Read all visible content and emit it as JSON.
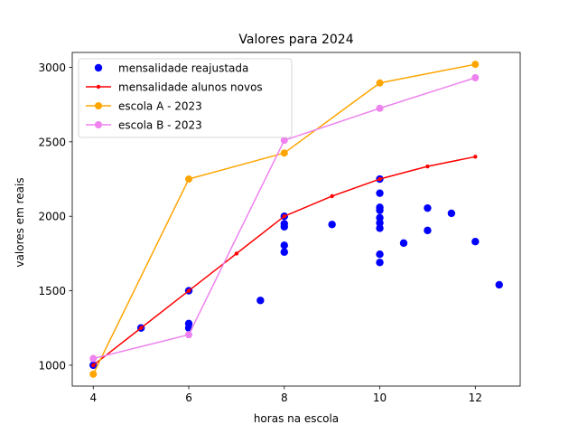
{
  "chart_data": {
    "type": "scatter",
    "title": "Valores para 2024",
    "xlabel": "horas na escola",
    "ylabel": "valores em reais",
    "xlim": [
      3.56,
      12.94
    ],
    "ylim": [
      860,
      3100
    ],
    "xticks": [
      4,
      6,
      8,
      10,
      12
    ],
    "yticks": [
      1000,
      1500,
      2000,
      2500,
      3000
    ],
    "grid": false,
    "legend_position": "top-left",
    "series": [
      {
        "name": "mensalidade reajustada",
        "kind": "scatter",
        "color": "#0000ff",
        "points": [
          [
            4,
            1000
          ],
          [
            5,
            1250
          ],
          [
            6,
            1500
          ],
          [
            6,
            1280
          ],
          [
            6,
            1250
          ],
          [
            7.5,
            1435
          ],
          [
            8,
            2000
          ],
          [
            8,
            1950
          ],
          [
            8,
            1930
          ],
          [
            8,
            1805
          ],
          [
            8,
            1760
          ],
          [
            9,
            1945
          ],
          [
            10,
            2250
          ],
          [
            10,
            2155
          ],
          [
            10,
            2060
          ],
          [
            10,
            2040
          ],
          [
            10,
            1990
          ],
          [
            10,
            1955
          ],
          [
            10,
            1920
          ],
          [
            10,
            1745
          ],
          [
            10,
            1690
          ],
          [
            10.5,
            1820
          ],
          [
            11,
            2055
          ],
          [
            11,
            1905
          ],
          [
            11.5,
            2020
          ],
          [
            12,
            1830
          ],
          [
            12.5,
            1540
          ]
        ]
      },
      {
        "name": "mensalidade alunos novos",
        "kind": "line",
        "color": "#ff0000",
        "marker_size": 2.2,
        "points": [
          [
            4,
            1000
          ],
          [
            5,
            1250
          ],
          [
            6,
            1500
          ],
          [
            7,
            1750
          ],
          [
            8,
            2000
          ],
          [
            9,
            2135
          ],
          [
            10,
            2250
          ],
          [
            11,
            2335
          ],
          [
            12,
            2400
          ]
        ]
      },
      {
        "name": "escola A - 2023",
        "kind": "line",
        "color": "#ffa500",
        "marker_size": 4,
        "points": [
          [
            4,
            940
          ],
          [
            6,
            2250
          ],
          [
            8,
            2425
          ],
          [
            10,
            2895
          ],
          [
            12,
            3020
          ]
        ]
      },
      {
        "name": "escola B - 2023",
        "kind": "line",
        "color": "#ee82ee",
        "marker_size": 4,
        "points": [
          [
            4,
            1045
          ],
          [
            6,
            1205
          ],
          [
            8,
            2510
          ],
          [
            10,
            2725
          ],
          [
            12,
            2930
          ]
        ]
      }
    ]
  }
}
